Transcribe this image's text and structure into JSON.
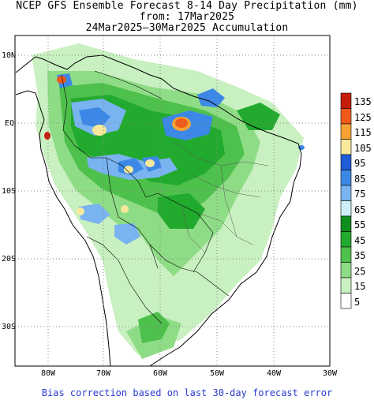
{
  "title": {
    "line1": "NCEP GFS Ensemble Forecast 8-14 Day Precipitation (mm)",
    "line2": "from: 17Mar2025",
    "line3": "24Mar2025–30Mar2025 Accumulation"
  },
  "axes": {
    "y_labels": [
      "10N",
      "EQ",
      "10S",
      "20S",
      "30S"
    ],
    "x_labels": [
      "80W",
      "70W",
      "60W",
      "50W",
      "40W",
      "30W"
    ]
  },
  "colorbar": {
    "labels": [
      "135",
      "125",
      "115",
      "105",
      "95",
      "85",
      "75",
      "65",
      "55",
      "45",
      "35",
      "25",
      "15",
      "5"
    ],
    "colors": [
      "#c41d0a",
      "#f05a19",
      "#f8a235",
      "#f7e89b",
      "#1f5cd6",
      "#3d88e6",
      "#79b3f0",
      "#cdeff5",
      "#0d8e1e",
      "#22aa2e",
      "#4ec04c",
      "#8fdc86",
      "#c8f0c0",
      "#ffffff"
    ]
  },
  "footnote": "Bias correction based on last 30-day forecast error"
}
